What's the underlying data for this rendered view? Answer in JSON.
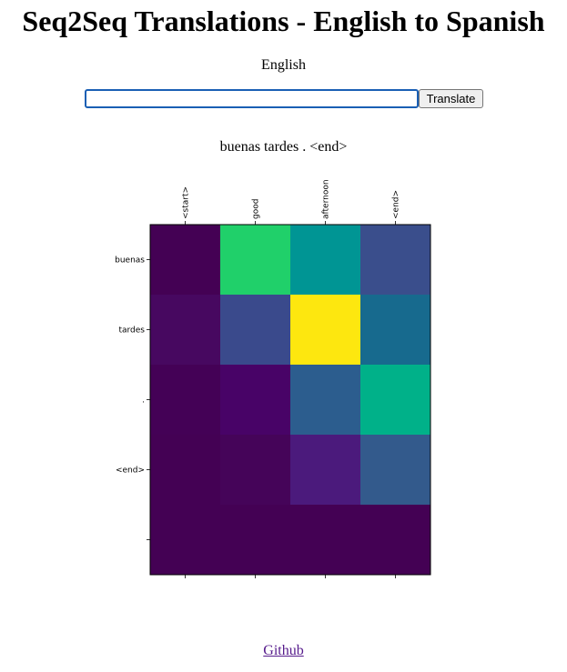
{
  "header": {
    "title": "Seq2Seq Translations - English to Spanish"
  },
  "form": {
    "label": "English",
    "input_value": "",
    "button_label": "Translate"
  },
  "result": {
    "translation": "buenas tardes . <end>"
  },
  "footer": {
    "link_label": "Github"
  },
  "chart_data": {
    "type": "heatmap",
    "colormap": "viridis",
    "x_tick_labels": [
      "<start>",
      "good",
      "afternoon",
      "<end>"
    ],
    "y_tick_labels": [
      "buenas",
      "tardes",
      ".",
      "<end>",
      ""
    ],
    "values": [
      [
        0.0,
        0.78,
        0.52,
        0.26
      ],
      [
        0.04,
        0.24,
        1.0,
        0.4
      ],
      [
        0.01,
        0.06,
        0.36,
        0.64
      ],
      [
        0.0,
        0.01,
        0.13,
        0.3
      ],
      [
        0.0,
        0.0,
        0.0,
        0.0
      ]
    ],
    "colors": [
      [
        "#440154",
        "#20d06a",
        "#009594",
        "#3a4e8c"
      ],
      [
        "#470860",
        "#3a4a8c",
        "#fde70f",
        "#176a8e"
      ],
      [
        "#440156",
        "#480367",
        "#2c5d8e",
        "#00b189"
      ],
      [
        "#440154",
        "#450459",
        "#4b1a7c",
        "#335a8c"
      ],
      [
        "#440154",
        "#440154",
        "#440154",
        "#440154"
      ]
    ]
  }
}
